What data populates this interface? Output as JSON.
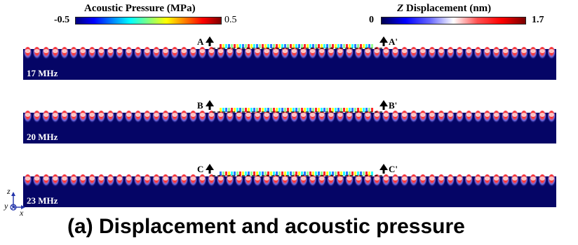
{
  "colorbars": {
    "pressure": {
      "title": "Acoustic Pressure (MPa)",
      "min": "-0.5",
      "max": "0.5"
    },
    "displacement": {
      "title_var": "Z",
      "title_rest": " Displacement (nm)",
      "min": "0",
      "max": "1.7"
    }
  },
  "panels": [
    {
      "frequency": "17 MHz",
      "left_marker": "A",
      "right_marker": "A'"
    },
    {
      "frequency": "20 MHz",
      "left_marker": "B",
      "right_marker": "B'"
    },
    {
      "frequency": "23 MHz",
      "left_marker": "C",
      "right_marker": "C'"
    }
  ],
  "axes": {
    "z": "z",
    "y": "y",
    "x": "x"
  },
  "caption": "(a) Displacement and acoustic pressure",
  "colors": {
    "field_background": "#050566",
    "ripple_red": "#e00000",
    "ripple_white": "#ffffff"
  }
}
